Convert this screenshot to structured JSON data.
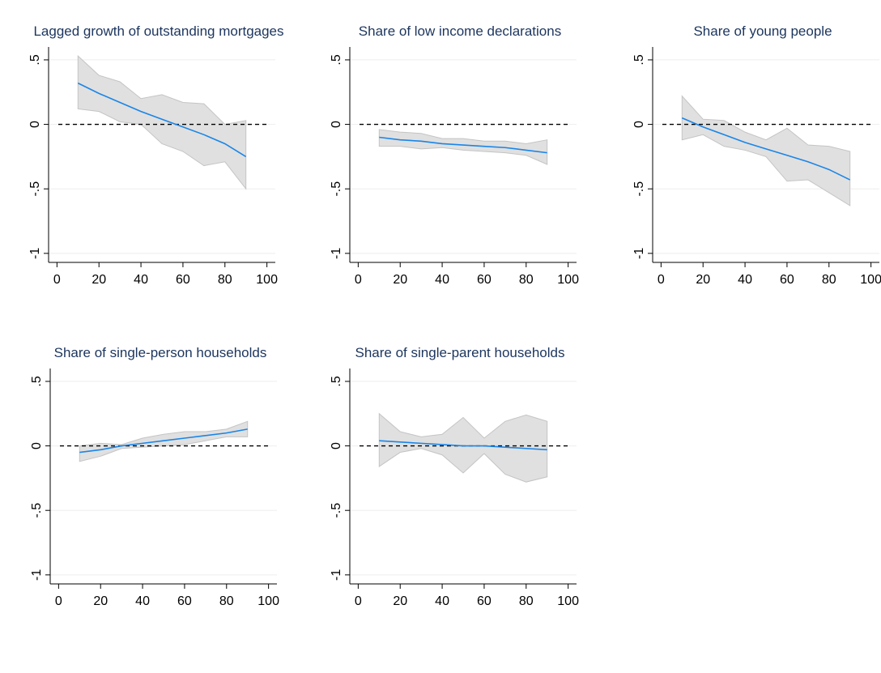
{
  "chart_data": [
    {
      "type": "line-band",
      "title": "Lagged growth of outstanding mortgages",
      "x": [
        10,
        20,
        30,
        40,
        50,
        60,
        70,
        80,
        90
      ],
      "values": [
        0.32,
        0.24,
        0.17,
        0.1,
        0.04,
        -0.02,
        -0.08,
        -0.15,
        -0.25
      ],
      "ci_upper": [
        0.53,
        0.38,
        0.33,
        0.2,
        0.23,
        0.17,
        0.16,
        0.0,
        0.03
      ],
      "ci_lower": [
        0.12,
        0.1,
        0.02,
        0.0,
        -0.15,
        -0.21,
        -0.32,
        -0.29,
        -0.5
      ],
      "color": "#1a85e8",
      "band_color": "#e0e0e0",
      "hline": 0,
      "xlim": [
        -4,
        104
      ],
      "xticks": [
        0,
        20,
        40,
        60,
        80,
        100
      ],
      "ylim": [
        -1.07,
        0.6
      ],
      "yticks": [
        -1,
        {
          "value": -0.5,
          "label": "-.5"
        },
        0,
        {
          "value": 0.5,
          "label": ".5"
        }
      ],
      "grid": true
    },
    {
      "type": "line-band",
      "title": "Share of low income declarations",
      "x": [
        10,
        20,
        30,
        40,
        50,
        60,
        70,
        80,
        90
      ],
      "values": [
        -0.1,
        -0.12,
        -0.13,
        -0.15,
        -0.16,
        -0.17,
        -0.18,
        -0.2,
        -0.22
      ],
      "ci_upper": [
        -0.04,
        -0.06,
        -0.07,
        -0.11,
        -0.11,
        -0.13,
        -0.13,
        -0.15,
        -0.12
      ],
      "ci_lower": [
        -0.17,
        -0.17,
        -0.19,
        -0.18,
        -0.2,
        -0.21,
        -0.22,
        -0.24,
        -0.31
      ],
      "color": "#1a85e8",
      "band_color": "#e0e0e0",
      "hline": 0,
      "xlim": [
        -4,
        104
      ],
      "xticks": [
        0,
        20,
        40,
        60,
        80,
        100
      ],
      "ylim": [
        -1.07,
        0.6
      ],
      "yticks": [
        -1,
        {
          "value": -0.5,
          "label": "-.5"
        },
        0,
        {
          "value": 0.5,
          "label": ".5"
        }
      ],
      "grid": true
    },
    {
      "type": "line-band",
      "title": "Share of young people",
      "x": [
        10,
        20,
        30,
        40,
        50,
        60,
        70,
        80,
        90
      ],
      "values": [
        0.05,
        -0.02,
        -0.08,
        -0.14,
        -0.19,
        -0.24,
        -0.29,
        -0.35,
        -0.43
      ],
      "ci_upper": [
        0.22,
        0.04,
        0.03,
        -0.06,
        -0.12,
        -0.03,
        -0.16,
        -0.17,
        -0.21
      ],
      "ci_lower": [
        -0.12,
        -0.08,
        -0.17,
        -0.2,
        -0.25,
        -0.44,
        -0.43,
        -0.53,
        -0.63
      ],
      "color": "#1a85e8",
      "band_color": "#e0e0e0",
      "hline": 0,
      "xlim": [
        -4,
        104
      ],
      "xticks": [
        0,
        20,
        40,
        60,
        80,
        100
      ],
      "ylim": [
        -1.07,
        0.6
      ],
      "yticks": [
        -1,
        {
          "value": -0.5,
          "label": "-.5"
        },
        0,
        {
          "value": 0.5,
          "label": ".5"
        }
      ],
      "grid": true
    },
    {
      "type": "line-band",
      "title": "Share of single-person households",
      "x": [
        10,
        20,
        30,
        40,
        50,
        60,
        70,
        80,
        90
      ],
      "values": [
        -0.05,
        -0.03,
        0.0,
        0.02,
        0.04,
        0.06,
        0.08,
        0.1,
        0.13
      ],
      "ci_upper": [
        0.0,
        0.02,
        0.01,
        0.06,
        0.09,
        0.11,
        0.11,
        0.13,
        0.19
      ],
      "ci_lower": [
        -0.12,
        -0.08,
        -0.02,
        -0.01,
        0.0,
        0.01,
        0.04,
        0.07,
        0.07
      ],
      "color": "#1a85e8",
      "band_color": "#e0e0e0",
      "hline": 0,
      "xlim": [
        -4,
        104
      ],
      "xticks": [
        0,
        20,
        40,
        60,
        80,
        100
      ],
      "ylim": [
        -1.07,
        0.6
      ],
      "yticks": [
        -1,
        {
          "value": -0.5,
          "label": "-.5"
        },
        0,
        {
          "value": 0.5,
          "label": ".5"
        }
      ],
      "grid": true
    },
    {
      "type": "line-band",
      "title": "Share of single-parent households",
      "x": [
        10,
        20,
        30,
        40,
        50,
        60,
        70,
        80,
        90
      ],
      "values": [
        0.04,
        0.03,
        0.02,
        0.01,
        0.0,
        0.0,
        -0.01,
        -0.02,
        -0.03
      ],
      "ci_upper": [
        0.25,
        0.11,
        0.07,
        0.09,
        0.22,
        0.06,
        0.19,
        0.24,
        0.19
      ],
      "ci_lower": [
        -0.16,
        -0.05,
        -0.02,
        -0.07,
        -0.21,
        -0.06,
        -0.22,
        -0.28,
        -0.24
      ],
      "color": "#1a85e8",
      "band_color": "#e0e0e0",
      "hline": 0,
      "xlim": [
        -4,
        104
      ],
      "xticks": [
        0,
        20,
        40,
        60,
        80,
        100
      ],
      "ylim": [
        -1.07,
        0.6
      ],
      "yticks": [
        -1,
        {
          "value": -0.5,
          "label": "-.5"
        },
        0,
        {
          "value": 0.5,
          "label": ".5"
        }
      ],
      "grid": true
    }
  ]
}
